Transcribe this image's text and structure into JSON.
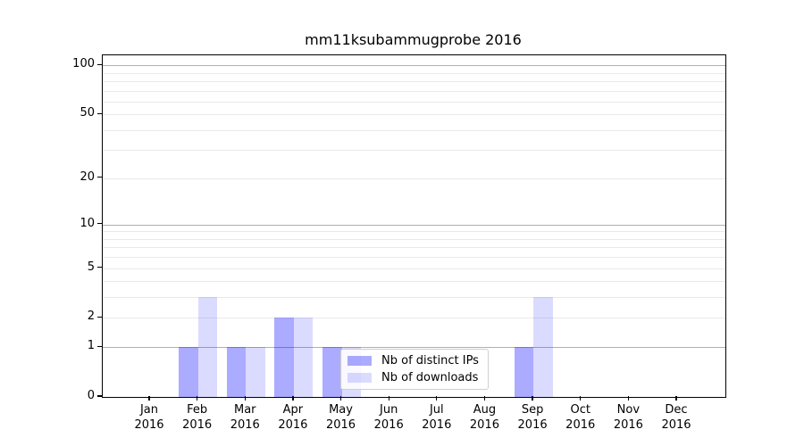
{
  "chart_data": {
    "type": "bar",
    "title": "mm11ksubammugprobe 2016",
    "categories": [
      "Jan",
      "Feb",
      "Mar",
      "Apr",
      "May",
      "Jun",
      "Jul",
      "Aug",
      "Sep",
      "Oct",
      "Nov",
      "Dec"
    ],
    "category_year": "2016",
    "series": [
      {
        "name": "Nb of distinct IPs",
        "color": "rgba(0,0,255,0.33)",
        "values": [
          0,
          1,
          1,
          2,
          1,
          0,
          0,
          0,
          1,
          0,
          0,
          0
        ]
      },
      {
        "name": "Nb of downloads",
        "color": "rgba(0,0,255,0.14)",
        "values": [
          0,
          3,
          1,
          2,
          1,
          0,
          0,
          0,
          3,
          0,
          0,
          0
        ]
      }
    ],
    "y_axis": {
      "scale": "log1p",
      "ticks": [
        0,
        1,
        2,
        5,
        10,
        20,
        50,
        100
      ],
      "major_grid_values": [
        1,
        10,
        100
      ],
      "minor_grid_values": [
        2,
        3,
        4,
        5,
        6,
        7,
        8,
        9,
        20,
        30,
        40,
        50,
        60,
        70,
        80,
        90
      ],
      "ylim": [
        0,
        115
      ],
      "grid": true
    },
    "legend": {
      "position": "lower center"
    }
  }
}
